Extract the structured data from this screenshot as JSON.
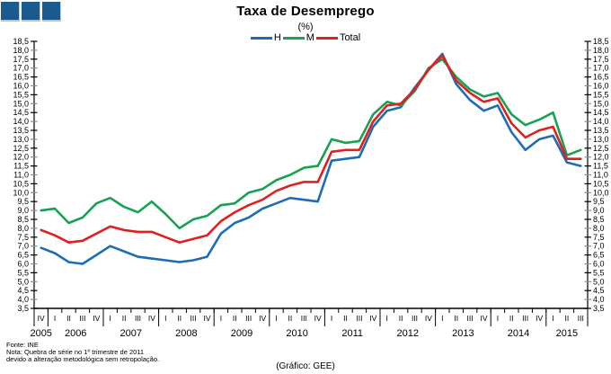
{
  "logo": {
    "square_color": "#1a5a8f",
    "count": 3
  },
  "title": "Taxa de Desemprego",
  "subtitle": "(%)",
  "legend": {
    "items": [
      {
        "label": "H",
        "color": "#1e6db4"
      },
      {
        "label": "M",
        "color": "#17a253"
      },
      {
        "label": "Total",
        "color": "#e01f1f"
      }
    ]
  },
  "chart_data": {
    "type": "line",
    "title": "Taxa de Desemprego",
    "ylabel": "%",
    "ylim": [
      3.5,
      18.5
    ],
    "ytick_step": 0.5,
    "grid": false,
    "legend_position": "top",
    "dual_y_axis": true,
    "ytick_labels": [
      "18,5",
      "18,0",
      "17,5",
      "17,0",
      "16,5",
      "16,0",
      "15,5",
      "15,0",
      "14,5",
      "14,0",
      "13,5",
      "13,0",
      "12,5",
      "12,0",
      "11,5",
      "11,0",
      "10,5",
      "10,0",
      "9,5",
      "9,0",
      "8,5",
      "8,0",
      "7,5",
      "7,0",
      "6,5",
      "6,0",
      "5,5",
      "5,0",
      "4,5",
      "4,0",
      "3,5"
    ],
    "quarters": [
      "IV",
      "I",
      "II",
      "III",
      "IV",
      "I",
      "II",
      "III",
      "IV",
      "I",
      "II",
      "III",
      "IV",
      "I",
      "II",
      "III",
      "IV",
      "I",
      "II",
      "III",
      "IV",
      "I",
      "II",
      "III",
      "IV",
      "I",
      "II",
      "III",
      "IV",
      "I",
      "II",
      "III",
      "IV",
      "I",
      "II",
      "III",
      "IV",
      "I",
      "II",
      "III"
    ],
    "years": [
      {
        "label": "2005",
        "span": 1
      },
      {
        "label": "2006",
        "span": 4
      },
      {
        "label": "2007",
        "span": 4
      },
      {
        "label": "2008",
        "span": 4
      },
      {
        "label": "2009",
        "span": 4
      },
      {
        "label": "2010",
        "span": 4
      },
      {
        "label": "2011",
        "span": 4
      },
      {
        "label": "2012",
        "span": 4
      },
      {
        "label": "2013",
        "span": 4
      },
      {
        "label": "2014",
        "span": 4
      },
      {
        "label": "2015",
        "span": 3
      }
    ],
    "series": [
      {
        "name": "H",
        "color": "#1e6db4",
        "values": [
          6.9,
          6.6,
          6.1,
          6.0,
          6.5,
          7.0,
          6.7,
          6.4,
          6.3,
          6.2,
          6.1,
          6.2,
          6.4,
          7.7,
          8.3,
          8.6,
          9.1,
          9.4,
          9.7,
          9.6,
          9.5,
          11.8,
          11.9,
          12.0,
          13.7,
          14.6,
          14.8,
          15.9,
          16.9,
          17.8,
          16.1,
          15.2,
          14.6,
          14.9,
          13.4,
          12.4,
          13.0,
          13.2,
          11.7,
          11.5
        ]
      },
      {
        "name": "M",
        "color": "#17a253",
        "values": [
          9.0,
          9.1,
          8.3,
          8.6,
          9.4,
          9.7,
          9.2,
          8.9,
          9.5,
          8.8,
          8.0,
          8.5,
          8.7,
          9.3,
          9.4,
          10.0,
          10.2,
          10.7,
          11.0,
          11.4,
          11.5,
          13.0,
          12.8,
          12.9,
          14.4,
          15.1,
          14.9,
          15.7,
          17.0,
          17.5,
          16.5,
          15.8,
          15.4,
          15.6,
          14.4,
          13.8,
          14.1,
          14.5,
          12.1,
          12.4
        ]
      },
      {
        "name": "Total",
        "color": "#e01f1f",
        "values": [
          7.9,
          7.6,
          7.2,
          7.3,
          7.7,
          8.1,
          7.9,
          7.8,
          7.8,
          7.5,
          7.2,
          7.4,
          7.6,
          8.4,
          8.9,
          9.3,
          9.6,
          10.1,
          10.4,
          10.6,
          10.6,
          12.3,
          12.4,
          12.4,
          14.0,
          14.9,
          15.0,
          15.8,
          16.9,
          17.7,
          16.3,
          15.6,
          15.1,
          15.3,
          13.9,
          13.1,
          13.5,
          13.7,
          11.9,
          11.9
        ]
      }
    ]
  },
  "footer": {
    "fonte": "Fonte: INE",
    "nota_line1": "Nota: Quebra de série no 1º trimestre de 2011",
    "nota_line2": "devido a alteração metodológica sem retropolação.",
    "credit": "(Gráfico: GEE)"
  }
}
